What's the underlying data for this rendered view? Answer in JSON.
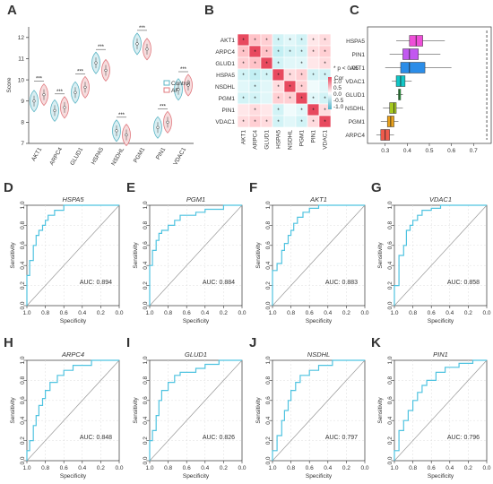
{
  "chart_data": [
    {
      "panel": "A",
      "type": "violin",
      "ylabel": "Score",
      "ylim": [
        7,
        12.5
      ],
      "yticks": [
        "7",
        "8",
        "9",
        "10",
        "11",
        "12"
      ],
      "categories": [
        "AKT1",
        "ARPC4",
        "GLUD1",
        "HSPA5",
        "NSDHL",
        "PGM1",
        "PIN1",
        "VDAC1"
      ],
      "legend": [
        "Control",
        "AF"
      ],
      "colors": {
        "Control": "#5bb5c5",
        "AF": "#e0787e"
      },
      "significance": [
        "***",
        "***",
        "***",
        "***",
        "***",
        "***",
        "***",
        "***"
      ],
      "series": [
        {
          "name": "Control",
          "values": [
            9.0,
            8.55,
            9.4,
            10.8,
            7.6,
            11.7,
            7.75,
            9.55
          ]
        },
        {
          "name": "AF",
          "values": [
            9.3,
            8.7,
            9.65,
            10.45,
            7.4,
            11.45,
            8.0,
            9.75
          ]
        }
      ]
    },
    {
      "panel": "B",
      "type": "heatmap",
      "rows": [
        "AKT1",
        "ARPC4",
        "GLUD1",
        "HSPA5",
        "NSDHL",
        "PGM1",
        "PIN1",
        "VDAC1"
      ],
      "cols": [
        "AKT1",
        "ARPC4",
        "GLUD1",
        "HSPA5",
        "NSDHL",
        "PGM1",
        "PIN1",
        "VDAC1"
      ],
      "legend_title": "Cor",
      "legend_note": "* p < 0.05",
      "legend_ticks": [
        "1.0",
        "0.5",
        "0.0",
        "-0.5",
        "-1.0"
      ],
      "values": [
        [
          1.0,
          0.5,
          0.4,
          -0.3,
          -0.2,
          -0.3,
          0.2,
          0.3
        ],
        [
          0.5,
          1.0,
          0.5,
          -0.4,
          -0.3,
          -0.3,
          0.3,
          0.4
        ],
        [
          0.4,
          0.5,
          1.0,
          -0.3,
          -0.2,
          -0.2,
          0.2,
          0.3
        ],
        [
          -0.3,
          -0.4,
          -0.3,
          1.0,
          0.3,
          0.4,
          -0.3,
          -0.3
        ],
        [
          -0.2,
          -0.3,
          -0.2,
          0.3,
          1.0,
          0.4,
          -0.1,
          -0.2
        ],
        [
          -0.3,
          -0.3,
          -0.2,
          0.4,
          0.4,
          1.0,
          -0.2,
          -0.3
        ],
        [
          0.2,
          0.3,
          0.2,
          -0.3,
          -0.1,
          -0.2,
          1.0,
          0.3
        ],
        [
          0.3,
          0.4,
          0.3,
          -0.3,
          -0.2,
          -0.3,
          0.3,
          1.0
        ]
      ],
      "stars": [
        [
          1,
          1,
          1,
          1,
          1,
          1,
          1,
          1
        ],
        [
          1,
          1,
          1,
          1,
          1,
          1,
          1,
          1
        ],
        [
          1,
          1,
          1,
          1,
          0,
          1,
          0,
          1
        ],
        [
          1,
          1,
          1,
          1,
          1,
          1,
          1,
          1
        ],
        [
          0,
          1,
          0,
          1,
          1,
          1,
          0,
          0
        ],
        [
          1,
          1,
          0,
          1,
          1,
          1,
          1,
          1
        ],
        [
          0,
          1,
          0,
          1,
          0,
          1,
          1,
          1
        ],
        [
          1,
          1,
          1,
          1,
          0,
          1,
          1,
          1
        ]
      ]
    },
    {
      "panel": "C",
      "type": "boxplot",
      "categories": [
        "HSPA5",
        "PIN1",
        "AKT1",
        "VDAC1",
        "GLUD1",
        "NSDHL",
        "PGM1",
        "ARPC4"
      ],
      "xlim": [
        0.22,
        0.78
      ],
      "xticks": [
        "0.3",
        "0.4",
        "0.5",
        "0.6",
        "0.7"
      ],
      "colors": [
        "#ee4fd8",
        "#c258f0",
        "#2b8de8",
        "#12c7c7",
        "#2ecf48",
        "#a6c91f",
        "#eaa21c",
        "#ee5b4c"
      ],
      "boxes": [
        {
          "min": 0.35,
          "q1": 0.41,
          "median": 0.44,
          "q3": 0.47,
          "max": 0.57
        },
        {
          "min": 0.32,
          "q1": 0.38,
          "median": 0.41,
          "q3": 0.45,
          "max": 0.55
        },
        {
          "min": 0.3,
          "q1": 0.37,
          "median": 0.41,
          "q3": 0.48,
          "max": 0.6
        },
        {
          "min": 0.33,
          "q1": 0.35,
          "median": 0.37,
          "q3": 0.39,
          "max": 0.42
        },
        {
          "min": 0.35,
          "q1": 0.36,
          "median": 0.365,
          "q3": 0.37,
          "max": 0.38
        },
        {
          "min": 0.29,
          "q1": 0.32,
          "median": 0.34,
          "q3": 0.35,
          "max": 0.38
        },
        {
          "min": 0.28,
          "q1": 0.31,
          "median": 0.325,
          "q3": 0.34,
          "max": 0.36
        },
        {
          "min": 0.26,
          "q1": 0.28,
          "median": 0.3,
          "q3": 0.32,
          "max": 0.34
        }
      ],
      "reference_line": 0.76
    },
    {
      "panel": "D",
      "type": "line",
      "title": "HSPA5",
      "xlabel": "Specificity",
      "ylabel": "Sensitivity",
      "auc": "AUC: 0.894",
      "xticks": [
        "1.0",
        "0.8",
        "0.6",
        "0.4",
        "0.2",
        "0.0"
      ],
      "yticks": [
        "0.0",
        "0.2",
        "0.4",
        "0.6",
        "0.8",
        "1.0"
      ],
      "x": [
        1.0,
        1.0,
        0.97,
        0.97,
        0.93,
        0.93,
        0.9,
        0.9,
        0.87,
        0.87,
        0.83,
        0.83,
        0.8,
        0.8,
        0.77,
        0.77,
        0.73,
        0.7,
        0.7,
        0.63,
        0.6,
        0.6,
        0.0
      ],
      "y": [
        0.0,
        0.3,
        0.3,
        0.45,
        0.45,
        0.6,
        0.6,
        0.7,
        0.7,
        0.75,
        0.75,
        0.8,
        0.8,
        0.85,
        0.85,
        0.9,
        0.9,
        0.9,
        0.95,
        0.95,
        0.95,
        1.0,
        1.0
      ]
    },
    {
      "panel": "E",
      "type": "line",
      "title": "PGM1",
      "xlabel": "Specificity",
      "ylabel": "Sensitivity",
      "auc": "AUC: 0.884",
      "xticks": [
        "1.0",
        "0.8",
        "0.6",
        "0.4",
        "0.2",
        "0.0"
      ],
      "yticks": [
        "0.0",
        "0.2",
        "0.4",
        "0.6",
        "0.8",
        "1.0"
      ],
      "x": [
        1.0,
        1.0,
        0.97,
        0.97,
        0.93,
        0.93,
        0.9,
        0.9,
        0.87,
        0.87,
        0.8,
        0.8,
        0.73,
        0.73,
        0.67,
        0.67,
        0.5,
        0.5,
        0.4,
        0.4,
        0.2,
        0.2,
        0.0
      ],
      "y": [
        0.0,
        0.4,
        0.4,
        0.55,
        0.55,
        0.65,
        0.65,
        0.72,
        0.72,
        0.75,
        0.75,
        0.8,
        0.8,
        0.85,
        0.85,
        0.9,
        0.9,
        0.93,
        0.93,
        0.96,
        0.96,
        1.0,
        1.0
      ]
    },
    {
      "panel": "F",
      "type": "line",
      "title": "AKT1",
      "xlabel": "Specificity",
      "ylabel": "Sensitivity",
      "auc": "AUC: 0.883",
      "xticks": [
        "1.0",
        "0.8",
        "0.6",
        "0.4",
        "0.2",
        "0.0"
      ],
      "yticks": [
        "0.0",
        "0.2",
        "0.4",
        "0.6",
        "0.8",
        "1.0"
      ],
      "x": [
        1.0,
        1.0,
        0.95,
        0.95,
        0.9,
        0.9,
        0.87,
        0.87,
        0.83,
        0.83,
        0.8,
        0.8,
        0.77,
        0.77,
        0.73,
        0.73,
        0.67,
        0.67,
        0.6,
        0.6,
        0.5,
        0.5,
        0.0
      ],
      "y": [
        0.0,
        0.35,
        0.35,
        0.42,
        0.42,
        0.55,
        0.55,
        0.62,
        0.62,
        0.7,
        0.7,
        0.75,
        0.75,
        0.82,
        0.82,
        0.88,
        0.88,
        0.93,
        0.93,
        0.97,
        0.97,
        1.0,
        1.0
      ]
    },
    {
      "panel": "G",
      "type": "line",
      "title": "VDAC1",
      "xlabel": "Specificity",
      "ylabel": "Sensitivity",
      "auc": "AUC: 0.858",
      "xticks": [
        "1.0",
        "0.8",
        "0.6",
        "0.4",
        "0.2",
        "0.0"
      ],
      "yticks": [
        "0.0",
        "0.2",
        "0.4",
        "0.6",
        "0.8",
        "1.0"
      ],
      "x": [
        1.0,
        1.0,
        0.95,
        0.95,
        0.9,
        0.9,
        0.87,
        0.87,
        0.83,
        0.83,
        0.8,
        0.8,
        0.75,
        0.75,
        0.7,
        0.7,
        0.6,
        0.6,
        0.5,
        0.5,
        0.0
      ],
      "y": [
        0.0,
        0.2,
        0.2,
        0.5,
        0.5,
        0.6,
        0.6,
        0.75,
        0.75,
        0.8,
        0.8,
        0.85,
        0.85,
        0.9,
        0.9,
        0.95,
        0.95,
        0.97,
        0.97,
        1.0,
        1.0
      ]
    },
    {
      "panel": "H",
      "type": "line",
      "title": "ARPC4",
      "xlabel": "Specificity",
      "ylabel": "Sensitivity",
      "auc": "AUC: 0.848",
      "xticks": [
        "1.0",
        "0.8",
        "0.6",
        "0.4",
        "0.2",
        "0.0"
      ],
      "yticks": [
        "0.0",
        "0.2",
        "0.4",
        "0.6",
        "0.8",
        "1.0"
      ],
      "x": [
        1.0,
        1.0,
        0.97,
        0.97,
        0.93,
        0.93,
        0.9,
        0.9,
        0.87,
        0.87,
        0.83,
        0.83,
        0.8,
        0.8,
        0.75,
        0.75,
        0.67,
        0.67,
        0.6,
        0.6,
        0.5,
        0.5,
        0.3,
        0.3,
        0.0
      ],
      "y": [
        0.0,
        0.1,
        0.1,
        0.2,
        0.2,
        0.35,
        0.35,
        0.45,
        0.45,
        0.55,
        0.55,
        0.62,
        0.62,
        0.7,
        0.7,
        0.78,
        0.78,
        0.85,
        0.85,
        0.9,
        0.9,
        0.95,
        0.95,
        1.0,
        1.0
      ]
    },
    {
      "panel": "I",
      "type": "line",
      "title": "GLUD1",
      "xlabel": "Specificity",
      "ylabel": "Sensitivity",
      "auc": "AUC: 0.826",
      "xticks": [
        "1.0",
        "0.8",
        "0.6",
        "0.4",
        "0.2",
        "0.0"
      ],
      "yticks": [
        "0.0",
        "0.2",
        "0.4",
        "0.6",
        "0.8",
        "1.0"
      ],
      "x": [
        1.0,
        1.0,
        0.97,
        0.97,
        0.93,
        0.93,
        0.9,
        0.9,
        0.87,
        0.87,
        0.8,
        0.8,
        0.73,
        0.73,
        0.67,
        0.67,
        0.5,
        0.5,
        0.4,
        0.4,
        0.25,
        0.25,
        0.0
      ],
      "y": [
        0.0,
        0.2,
        0.2,
        0.3,
        0.3,
        0.45,
        0.45,
        0.6,
        0.6,
        0.7,
        0.7,
        0.78,
        0.78,
        0.85,
        0.85,
        0.88,
        0.88,
        0.92,
        0.92,
        0.96,
        0.96,
        1.0,
        1.0
      ]
    },
    {
      "panel": "J",
      "type": "line",
      "title": "NSDHL",
      "xlabel": "Specificity",
      "ylabel": "Sensitivity",
      "auc": "AUC: 0.797",
      "xticks": [
        "1.0",
        "0.8",
        "0.6",
        "0.4",
        "0.2",
        "0.0"
      ],
      "yticks": [
        "0.0",
        "0.2",
        "0.4",
        "0.6",
        "0.8",
        "1.0"
      ],
      "x": [
        1.0,
        1.0,
        0.95,
        0.95,
        0.9,
        0.9,
        0.87,
        0.87,
        0.83,
        0.83,
        0.8,
        0.8,
        0.75,
        0.75,
        0.7,
        0.7,
        0.6,
        0.6,
        0.5,
        0.5,
        0.35,
        0.35,
        0.0
      ],
      "y": [
        0.0,
        0.1,
        0.1,
        0.25,
        0.25,
        0.4,
        0.4,
        0.5,
        0.5,
        0.6,
        0.6,
        0.7,
        0.7,
        0.78,
        0.78,
        0.85,
        0.85,
        0.9,
        0.9,
        0.95,
        0.95,
        1.0,
        1.0
      ]
    },
    {
      "panel": "K",
      "type": "line",
      "title": "PIN1",
      "xlabel": "Specificity",
      "ylabel": "Sensitivity",
      "auc": "AUC: 0.796",
      "xticks": [
        "1.0",
        "0.8",
        "0.6",
        "0.4",
        "0.2",
        "0.0"
      ],
      "yticks": [
        "0.0",
        "0.2",
        "0.4",
        "0.6",
        "0.8",
        "1.0"
      ],
      "x": [
        1.0,
        1.0,
        0.95,
        0.95,
        0.9,
        0.9,
        0.85,
        0.85,
        0.8,
        0.8,
        0.75,
        0.75,
        0.7,
        0.7,
        0.65,
        0.65,
        0.55,
        0.55,
        0.45,
        0.45,
        0.3,
        0.3,
        0.15,
        0.15,
        0.0
      ],
      "y": [
        0.0,
        0.1,
        0.1,
        0.3,
        0.3,
        0.4,
        0.4,
        0.5,
        0.5,
        0.6,
        0.6,
        0.68,
        0.68,
        0.75,
        0.75,
        0.8,
        0.8,
        0.88,
        0.88,
        0.93,
        0.93,
        0.97,
        0.97,
        1.0,
        1.0
      ]
    }
  ]
}
